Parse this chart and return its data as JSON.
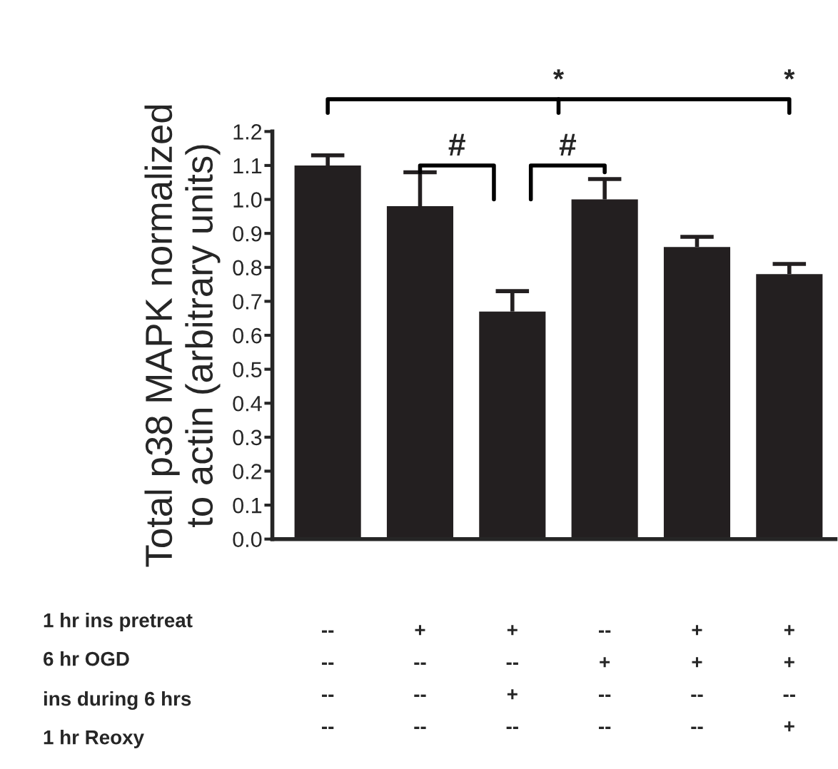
{
  "chart_data": {
    "type": "bar",
    "ylabel": "Total p38 MAPK normalized\nto actin (arbitrary units)",
    "categories": [
      "--\n--\n--\n--",
      "+\n--\n--\n--",
      "+\n--\n+\n--",
      "--\n+\n--\n--",
      "+\n+\n--\n--",
      "+\n+\n--\n+"
    ],
    "values": [
      1.1,
      0.98,
      0.67,
      1.0,
      0.86,
      0.78
    ],
    "errors": [
      [
        1.1,
        1.13
      ],
      [
        0.98,
        1.08
      ],
      [
        0.67,
        0.73
      ],
      [
        1.0,
        1.06
      ],
      [
        0.86,
        0.89
      ],
      [
        0.78,
        0.81
      ]
    ],
    "color": "#231f20",
    "ylim": [
      0,
      1.2
    ],
    "yticks": [
      {
        "value": 0,
        "label": "0.0"
      },
      0.1,
      0.2,
      0.3,
      0.4,
      0.5,
      0.6,
      0.7,
      0.8,
      0.9,
      {
        "value": 1,
        "label": "1.0"
      },
      1.1,
      1.2
    ],
    "grid": false,
    "annotations": [
      "*",
      "*",
      "#",
      "#",
      "1 hr ins pretreat",
      "6 hr OGD",
      "ins during 6 hrs",
      "1 hr Reoxy"
    ]
  }
}
